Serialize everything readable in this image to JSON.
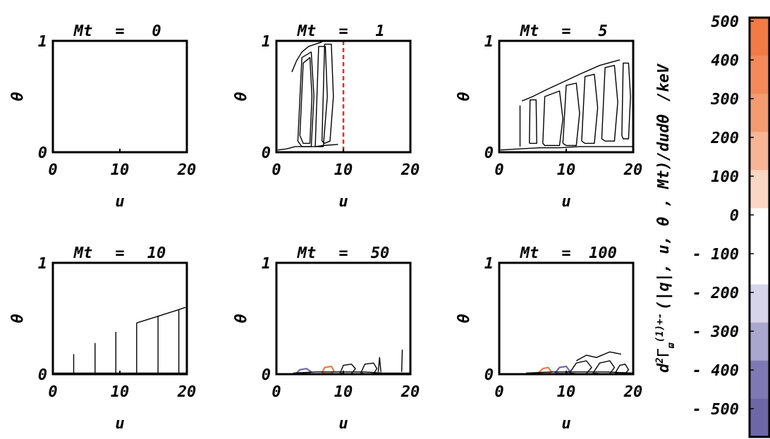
{
  "chart_data": {
    "type": "contour",
    "panels": [
      {
        "title_var": "Mt",
        "title_eq": "=",
        "title_val": "0",
        "xlabel": "u",
        "ylabel": "θ",
        "xticks": [
          "0",
          "10",
          "20"
        ],
        "yticks": [
          "0",
          "1"
        ],
        "xlim": [
          0,
          20
        ],
        "ylim": [
          0,
          1
        ],
        "contours": []
      },
      {
        "title_var": "Mt",
        "title_eq": "=",
        "title_val": "1",
        "xlabel": "u",
        "ylabel": "θ",
        "xticks": [
          "0",
          "10",
          "20"
        ],
        "yticks": [
          "0",
          "1"
        ],
        "xlim": [
          0,
          20
        ],
        "ylim": [
          0,
          1
        ],
        "marker_line_u": 10,
        "contours": [
          {
            "u": [
              3.2,
              3.8,
              5.2,
              5.6,
              5.2,
              3.8,
              3.2
            ],
            "t": [
              0.1,
              0.85,
              0.9,
              0.5,
              0.05,
              0.05,
              0.1
            ],
            "color": "#000000"
          },
          {
            "u": [
              3.5,
              4.0,
              5.0,
              5.3,
              5.0,
              4.0,
              3.5
            ],
            "t": [
              0.15,
              0.8,
              0.85,
              0.5,
              0.08,
              0.08,
              0.15
            ],
            "color": "#000000"
          },
          {
            "u": [
              5.8,
              6.3,
              7.3,
              7.6,
              7.0,
              6.2,
              5.8
            ],
            "t": [
              0.05,
              0.95,
              0.95,
              0.5,
              0.05,
              0.05,
              0.05
            ],
            "color": "#000000"
          },
          {
            "u": [
              6.8,
              7.2,
              8.2,
              8.5,
              8.0,
              7.2,
              6.8
            ],
            "t": [
              0.1,
              0.97,
              0.97,
              0.5,
              0.1,
              0.08,
              0.1
            ],
            "color": "#000000"
          },
          {
            "u": [
              2.3,
              3.0,
              3.8,
              4.8,
              5.8,
              6.8
            ],
            "t": [
              0.72,
              0.82,
              0.9,
              0.95,
              0.97,
              0.99
            ],
            "color": "#000000"
          },
          {
            "u": [
              0.2,
              1.5,
              2.8,
              3.4,
              5.8,
              7.0,
              9.2
            ],
            "t": [
              0.02,
              0.03,
              0.05,
              0.05,
              0.05,
              0.06,
              0.07
            ],
            "color": "#000000"
          }
        ]
      },
      {
        "title_var": "Mt",
        "title_eq": "=",
        "title_val": "5",
        "xlabel": "u",
        "ylabel": "θ",
        "xticks": [
          "0",
          "10",
          "20"
        ],
        "yticks": [
          "0",
          "1"
        ],
        "xlim": [
          0,
          20
        ],
        "ylim": [
          0,
          1
        ],
        "contours": [
          {
            "u": [
              3.1,
              3.1
            ],
            "t": [
              0.05,
              0.42
            ],
            "color": "#000000"
          },
          {
            "u": [
              4.5,
              4.6,
              5.5,
              5.6,
              4.5
            ],
            "t": [
              0.08,
              0.47,
              0.47,
              0.08,
              0.08
            ],
            "color": "#000000"
          },
          {
            "u": [
              6.5,
              6.8,
              9.0,
              9.5,
              9.0,
              6.8,
              6.5
            ],
            "t": [
              0.08,
              0.5,
              0.55,
              0.3,
              0.06,
              0.06,
              0.08
            ],
            "color": "#000000"
          },
          {
            "u": [
              9.5,
              10.0,
              11.5,
              12.0,
              11.5,
              10.0,
              9.5
            ],
            "t": [
              0.08,
              0.6,
              0.62,
              0.35,
              0.06,
              0.06,
              0.08
            ],
            "color": "#000000"
          },
          {
            "u": [
              12.3,
              12.8,
              14.2,
              14.7,
              14.2,
              12.8,
              12.3
            ],
            "t": [
              0.1,
              0.68,
              0.7,
              0.4,
              0.08,
              0.08,
              0.1
            ],
            "color": "#000000"
          },
          {
            "u": [
              15.3,
              15.8,
              17.2,
              17.7,
              17.2,
              15.8,
              15.3
            ],
            "t": [
              0.12,
              0.76,
              0.78,
              0.45,
              0.1,
              0.1,
              0.12
            ],
            "color": "#000000"
          },
          {
            "u": [
              18.3,
              18.5,
              19.3,
              19.6,
              19.3,
              18.5,
              18.3
            ],
            "t": [
              0.15,
              0.8,
              0.8,
              0.5,
              0.12,
              0.12,
              0.15
            ],
            "color": "#000000"
          },
          {
            "u": [
              0.2,
              3.0,
              6.0,
              9.0,
              12.0,
              15.0,
              18.0,
              20.0
            ],
            "t": [
              0.02,
              0.03,
              0.04,
              0.04,
              0.05,
              0.05,
              0.05,
              0.05
            ],
            "color": "#000000"
          },
          {
            "u": [
              3.4,
              5.0,
              7.0,
              9.5,
              12.0,
              15.0,
              18.0
            ],
            "t": [
              0.46,
              0.5,
              0.56,
              0.63,
              0.7,
              0.78,
              0.83
            ],
            "color": "#000000"
          }
        ]
      },
      {
        "title_var": "Mt",
        "title_eq": "=",
        "title_val": "10",
        "xlabel": "u",
        "ylabel": "θ",
        "xticks": [
          "0",
          "10",
          "20"
        ],
        "yticks": [
          "0",
          "1"
        ],
        "xlim": [
          0,
          20
        ],
        "ylim": [
          0,
          1
        ],
        "contours": [
          {
            "u": [
              3.1,
              3.1
            ],
            "t": [
              0.01,
              0.18
            ],
            "color": "#000000"
          },
          {
            "u": [
              6.3,
              6.3
            ],
            "t": [
              0.01,
              0.28
            ],
            "color": "#000000"
          },
          {
            "u": [
              9.4,
              9.4
            ],
            "t": [
              0.01,
              0.38
            ],
            "color": "#000000"
          },
          {
            "u": [
              12.5,
              12.5
            ],
            "t": [
              0.01,
              0.46
            ],
            "color": "#000000"
          },
          {
            "u": [
              15.7,
              15.7
            ],
            "t": [
              0.01,
              0.52
            ],
            "color": "#000000"
          },
          {
            "u": [
              18.8,
              18.8
            ],
            "t": [
              0.01,
              0.58
            ],
            "color": "#000000"
          },
          {
            "u": [
              0.2,
              20.0
            ],
            "t": [
              0.01,
              0.01
            ],
            "color": "#000000"
          },
          {
            "u": [
              12.5,
              15.7,
              18.8,
              19.8
            ],
            "t": [
              0.46,
              0.52,
              0.58,
              0.6
            ],
            "color": "#000000"
          }
        ]
      },
      {
        "title_var": "Mt",
        "title_eq": "=",
        "title_val": "50",
        "xlabel": "u",
        "ylabel": "θ",
        "xticks": [
          "0",
          "10",
          "20"
        ],
        "yticks": [
          "0",
          "1"
        ],
        "xlim": [
          0,
          20
        ],
        "ylim": [
          0,
          1
        ],
        "contours": [
          {
            "u": [
              3.0,
              3.5,
              4.5,
              5.2,
              4.5,
              3.5,
              3.0
            ],
            "t": [
              0.01,
              0.04,
              0.05,
              0.02,
              0.005,
              0.005,
              0.01
            ],
            "color": "#6f6aa6"
          },
          {
            "u": [
              6.8,
              7.2,
              8.2,
              8.6,
              8.2,
              7.2,
              6.8
            ],
            "t": [
              0.01,
              0.06,
              0.07,
              0.03,
              0.005,
              0.005,
              0.01
            ],
            "color": "#f07a4a"
          },
          {
            "u": [
              9.5,
              10.0,
              11.2,
              11.8,
              11.2,
              10.0,
              9.5
            ],
            "t": [
              0.01,
              0.08,
              0.09,
              0.05,
              0.005,
              0.005,
              0.01
            ],
            "color": "#000000"
          },
          {
            "u": [
              12.6,
              13.2,
              14.5,
              15.0,
              14.5,
              13.2,
              12.6
            ],
            "t": [
              0.01,
              0.09,
              0.1,
              0.05,
              0.005,
              0.005,
              0.01
            ],
            "color": "#000000"
          },
          {
            "u": [
              15.2,
              15.4,
              15.6
            ],
            "t": [
              0.02,
              0.15,
              0.02
            ],
            "color": "#000000"
          },
          {
            "u": [
              18.7,
              18.8
            ],
            "t": [
              0.02,
              0.22
            ],
            "color": "#000000"
          },
          {
            "u": [
              2.5,
              6.0,
              9.5,
              13.0,
              16.0,
              20.0
            ],
            "t": [
              0.01,
              0.02,
              0.02,
              0.02,
              0.01,
              0.01
            ],
            "color": "#000000"
          }
        ]
      },
      {
        "title_var": "Mt",
        "title_eq": "=",
        "title_val": "100",
        "xlabel": "u",
        "ylabel": "θ",
        "xticks": [
          "0",
          "10",
          "20"
        ],
        "yticks": [
          "0",
          "1"
        ],
        "xlim": [
          0,
          20
        ],
        "ylim": [
          0,
          1
        ],
        "contours": [
          {
            "u": [
              5.8,
              6.5,
              7.3,
              7.8,
              7.3,
              6.5,
              5.8
            ],
            "t": [
              0.01,
              0.05,
              0.06,
              0.02,
              0.005,
              0.005,
              0.01
            ],
            "color": "#f07a4a"
          },
          {
            "u": [
              8.3,
              9.0,
              10.0,
              10.5,
              10.0,
              9.0,
              8.3
            ],
            "t": [
              0.01,
              0.06,
              0.07,
              0.03,
              0.005,
              0.005,
              0.01
            ],
            "color": "#6f6aa6"
          },
          {
            "u": [
              10.5,
              11.5,
              13.0,
              13.8,
              13.0,
              11.5,
              10.5
            ],
            "t": [
              0.01,
              0.1,
              0.12,
              0.06,
              0.005,
              0.005,
              0.01
            ],
            "color": "#000000"
          },
          {
            "u": [
              14.0,
              15.0,
              16.5,
              17.2,
              16.5,
              15.0,
              14.0
            ],
            "t": [
              0.01,
              0.1,
              0.12,
              0.06,
              0.005,
              0.005,
              0.01
            ],
            "color": "#000000"
          },
          {
            "u": [
              17.3,
              18.0,
              18.8,
              19.3,
              18.8,
              18.0,
              17.3
            ],
            "t": [
              0.01,
              0.08,
              0.09,
              0.04,
              0.005,
              0.005,
              0.01
            ],
            "color": "#000000"
          },
          {
            "u": [
              11.5,
              13.0,
              14.5,
              16.5,
              18.2
            ],
            "t": [
              0.12,
              0.17,
              0.15,
              0.2,
              0.18
            ],
            "color": "#000000"
          },
          {
            "u": [
              4.0,
              8.0,
              12.0,
              16.0,
              20.0
            ],
            "t": [
              0.01,
              0.02,
              0.02,
              0.02,
              0.01
            ],
            "color": "#000000"
          }
        ]
      }
    ],
    "colorbar": {
      "label_d": "d",
      "label_sup2": "2",
      "label_gamma": "Γ",
      "label_sub": "ϖ",
      "label_sup_cond": "(1)+-",
      "label_args": "(|q|, u, θ , Mt)/dudθ",
      "label_units": "/keV",
      "ticks": [
        "500",
        "400",
        "300",
        "200",
        "100",
        "0",
        "- 100",
        "- 200",
        "- 300",
        "- 400",
        "- 500"
      ],
      "levels": [
        500,
        400,
        300,
        200,
        100,
        0,
        -100,
        -200,
        -300,
        -400,
        -500
      ],
      "colors": [
        "#f27a45",
        "#f48a5a",
        "#f59b70",
        "#f7b596",
        "#fad6c4",
        "#ffffff",
        "#ffffff",
        "#d6d4e8",
        "#a9a6cf",
        "#7e79b4",
        "#6d67a8"
      ]
    }
  }
}
